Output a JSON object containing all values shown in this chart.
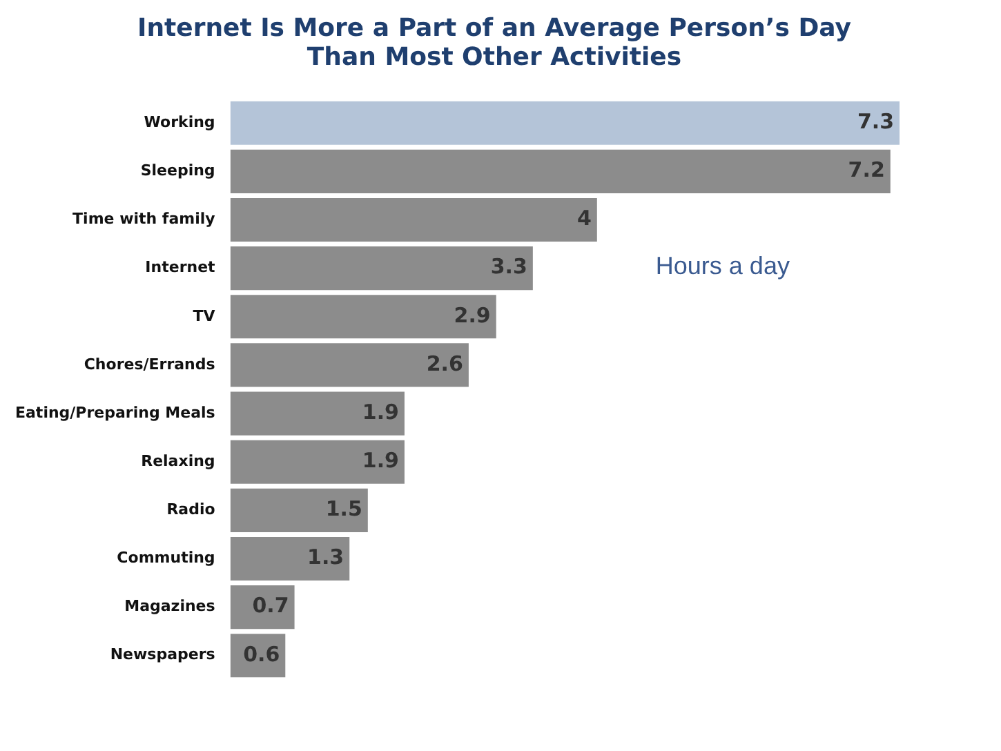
{
  "chart_data": {
    "type": "bar",
    "orientation": "horizontal",
    "title": "Internet Is More a Part of an Average Person’s Day Than Most Other Activities",
    "categories": [
      "Working",
      "Sleeping",
      "Time with family",
      "Internet",
      "TV",
      "Chores/Errands",
      "Eating/Preparing Meals",
      "Relaxing",
      "Radio",
      "Commuting",
      "Magazines",
      "Newspapers"
    ],
    "values": [
      7.3,
      7.2,
      4,
      3.3,
      2.9,
      2.6,
      1.9,
      1.9,
      1.5,
      1.3,
      0.7,
      0.6
    ],
    "colors": [
      "#b4c4d8",
      "#8c8c8c",
      "#8c8c8c",
      "#8c8c8c",
      "#8c8c8c",
      "#8c8c8c",
      "#8c8c8c",
      "#8c8c8c",
      "#8c8c8c",
      "#8c8c8c",
      "#8c8c8c",
      "#8c8c8c"
    ],
    "data_labels": true,
    "annotations": [
      "Hours a day"
    ]
  }
}
